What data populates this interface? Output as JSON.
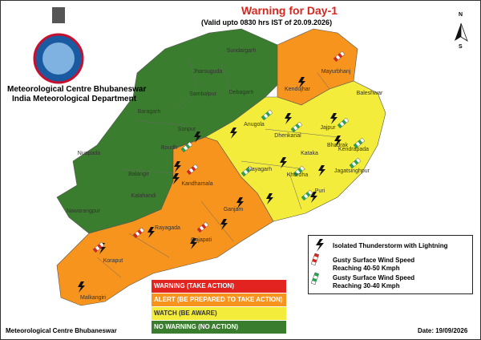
{
  "header": {
    "title": "Warning for Day-1",
    "subtitle": "(Valid upto 0830 hrs IST of 20.09.2026)",
    "org": "Meteorological Centre Bhubaneswar",
    "dept": "India Meteorological Department",
    "north": "N",
    "south": "S"
  },
  "districts": [
    "Sundargarh",
    "Jharsuguda",
    "Sambalpur",
    "Debagarh",
    "Baragarh",
    "Mayurbhanj",
    "Kendujhar",
    "Baleshwar",
    "Sonpur",
    "Anugola",
    "Dhenkanal",
    "Jajpur",
    "Bhadrak",
    "Boudh",
    "Nuapada",
    "Balangir",
    "Kendrapada",
    "Kataka",
    "Nayagarh",
    "Khordha",
    "Jagatsinghpur",
    "Kandhamala",
    "Kalahandi",
    "Puri",
    "Ganjam",
    "Nawarangpur",
    "Rayagada",
    "Gajapati",
    "Koraput",
    "Malkangiri"
  ],
  "legend": {
    "items": [
      "Isolated Thunderstorm with Lightning",
      "Gusty Surface Wind Speed Reaching 40-50 Kmph",
      "Gusty Surface Wind Speed Reaching 30-40 Kmph"
    ]
  },
  "warning_levels": [
    {
      "label": "WARNING (TAKE ACTION)",
      "color": "#e3231f"
    },
    {
      "label": "ALERT (BE PREPARED TO TAKE ACTION)",
      "color": "#f7941d"
    },
    {
      "label": "WATCH (BE AWARE)",
      "color": "#f4ec3b"
    },
    {
      "label": "NO WARNING (NO ACTION)",
      "color": "#3b7d2e"
    }
  ],
  "footer": {
    "org": "Meteorological Centre Bhubaneswar",
    "date": "Date: 19/09/2026"
  }
}
